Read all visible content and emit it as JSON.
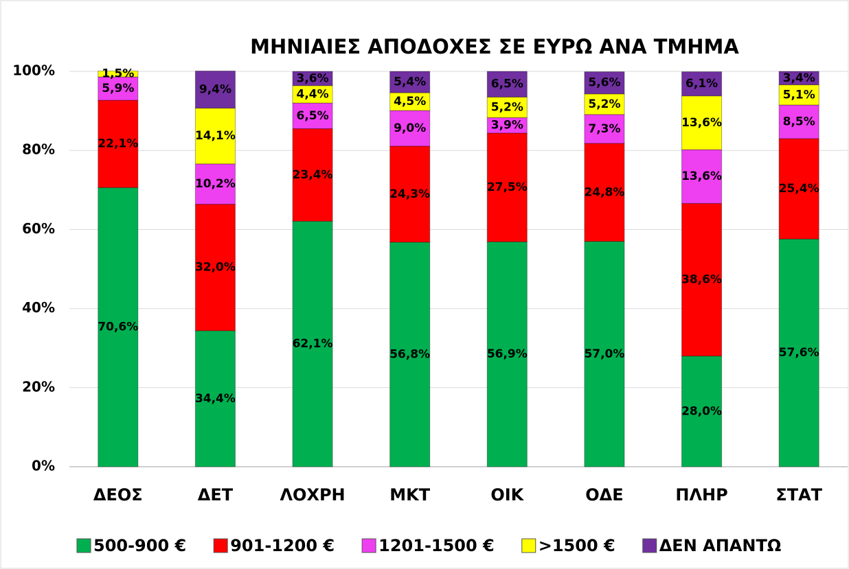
{
  "chart_data": {
    "type": "stacked_bar",
    "title": "ΜΗΝΙΑΙΕΣ ΑΠΟΔΟΧΕΣ ΣΕ ΕΥΡΩ ΑΝΑ ΤΜΗΜΑ",
    "categories": [
      "ΔΕΟΣ",
      "ΔΕΤ",
      "ΛΟΧΡΗ",
      "ΜΚΤ",
      "ΟΙΚ",
      "ΟΔΕ",
      "ΠΛΗΡ",
      "ΣΤΑΤ"
    ],
    "series": [
      {
        "name": "500-900 €",
        "color": "#00b050",
        "values": [
          70.6,
          34.4,
          62.1,
          56.8,
          56.9,
          57.0,
          28.0,
          57.6
        ],
        "value_labels": [
          "70,6%",
          "34,4%",
          "62,1%",
          "56,8%",
          "56,9%",
          "57,0%",
          "28,0%",
          "57,6%"
        ]
      },
      {
        "name": "901-1200 €",
        "color": "#ff0000",
        "values": [
          22.1,
          32.0,
          23.4,
          24.3,
          27.5,
          24.8,
          38.6,
          25.4
        ],
        "value_labels": [
          "22,1%",
          "32,0%",
          "23,4%",
          "24,3%",
          "27,5%",
          "24,8%",
          "38,6%",
          "25,4%"
        ]
      },
      {
        "name": "1201-1500 €",
        "color": "#ee3ff0",
        "values": [
          5.9,
          10.2,
          6.5,
          9.0,
          3.9,
          7.3,
          13.6,
          8.5
        ],
        "value_labels": [
          "5,9%",
          "10,2%",
          "6,5%",
          "9,0%",
          "3,9%",
          "7,3%",
          "13,6%",
          "8,5%"
        ]
      },
      {
        "name": ">1500 €",
        "color": "#ffff00",
        "values": [
          1.5,
          14.1,
          4.4,
          4.5,
          5.2,
          5.2,
          13.6,
          5.1
        ],
        "value_labels": [
          "1,5%",
          "14,1%",
          "4,4%",
          "4,5%",
          "5,2%",
          "5,2%",
          "13,6%",
          "5,1%"
        ]
      },
      {
        "name": "ΔΕΝ ΑΠΑΝΤΩ",
        "color": "#7030a0",
        "values": [
          null,
          9.4,
          3.6,
          5.4,
          6.5,
          5.6,
          6.1,
          3.4
        ],
        "value_labels": [
          null,
          "9,4%",
          "3,6%",
          "5,4%",
          "6,5%",
          "5,6%",
          "6,1%",
          "3,4%"
        ]
      }
    ],
    "ylim": [
      0,
      100
    ],
    "yticks": [
      {
        "value": 0,
        "label": "0%"
      },
      {
        "value": 20,
        "label": "20%"
      },
      {
        "value": 40,
        "label": "40%"
      },
      {
        "value": 60,
        "label": "60%"
      },
      {
        "value": 80,
        "label": "80%"
      },
      {
        "value": 100,
        "label": "100%"
      }
    ],
    "grid": true,
    "legend": "bottom"
  }
}
